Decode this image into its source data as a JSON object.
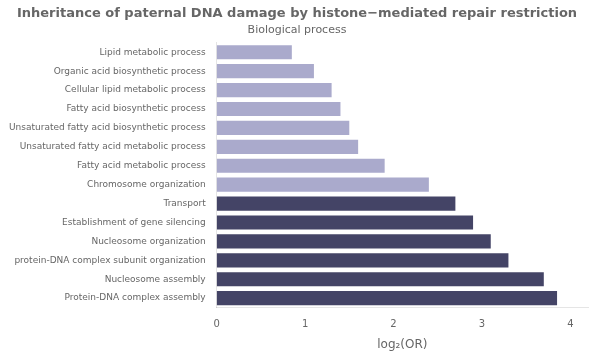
{
  "chart_data": {
    "type": "bar",
    "title": "Inheritance of paternal DNA damage by histone−mediated repair restriction",
    "subtitle": "Biological process",
    "x_label": "log₂(OR)",
    "orientation": "horizontal",
    "categories": [
      "Protein-DNA complex assembly",
      "Nucleosome assembly",
      "protein-DNA complex subunit organization",
      "Nucleosome organization",
      "Establishment of gene silencing",
      "Transport",
      "Chromosome organization",
      "Fatty acid metabolic process",
      "Unsaturated fatty acid metabolic process",
      "Unsaturated fatty acid biosynthetic process",
      "Fatty acid biosynthetic process",
      "Cellular lipid metabolic process",
      "Organic acid biosynthetic process",
      "Lipid metabolic process"
    ],
    "values": [
      3.85,
      3.7,
      3.3,
      3.1,
      2.9,
      2.7,
      2.4,
      1.9,
      1.6,
      1.5,
      1.4,
      1.3,
      1.1,
      0.85
    ],
    "colors": [
      "#444466",
      "#444466",
      "#444466",
      "#444466",
      "#444466",
      "#444466",
      "#aaaacc",
      "#aaaacc",
      "#aaaacc",
      "#aaaacc",
      "#aaaacc",
      "#aaaacc",
      "#aaaacc",
      "#aaaacc"
    ],
    "xlim": [
      0,
      4.2
    ],
    "xticks": [
      0,
      1,
      2,
      3,
      4
    ],
    "grid": false,
    "legend": "none"
  }
}
